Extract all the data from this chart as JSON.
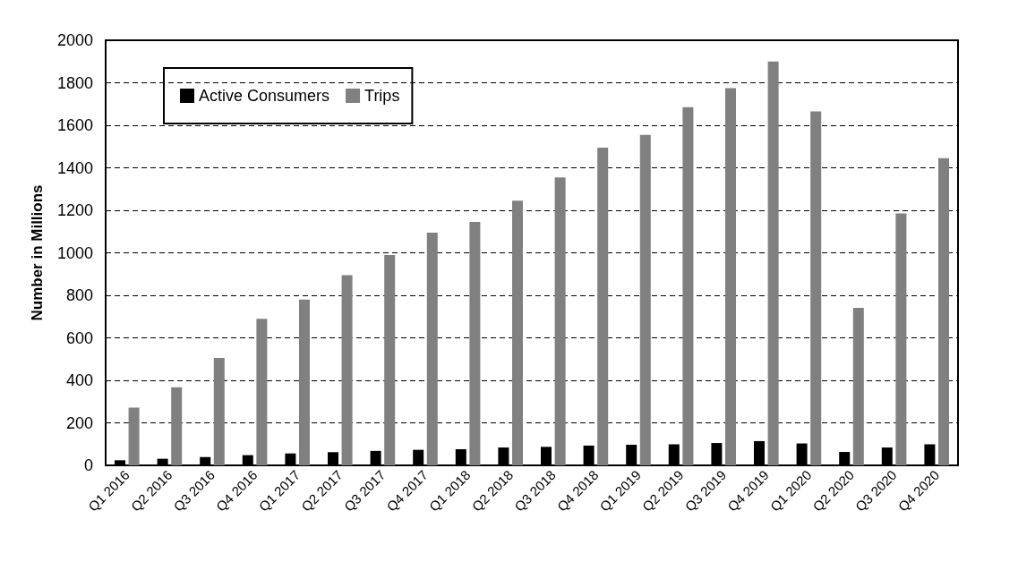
{
  "chart_data": {
    "type": "bar",
    "ylabel": "Number in Millions",
    "categories": [
      "Q1 2016",
      "Q2 2016",
      "Q3 2016",
      "Q4 2016",
      "Q1 2017",
      "Q2 2017",
      "Q3 2017",
      "Q4 2017",
      "Q1 2018",
      "Q2 2018",
      "Q3 2018",
      "Q4 2018",
      "Q1 2019",
      "Q2 2019",
      "Q3 2019",
      "Q4 2019",
      "Q1 2020",
      "Q2 2020",
      "Q3 2020",
      "Q4 2020"
    ],
    "series": [
      {
        "name": "Active Consumers",
        "color": "#000000",
        "values": [
          24,
          31,
          39,
          48,
          56,
          62,
          68,
          73,
          76,
          84,
          87,
          93,
          97,
          99,
          105,
          114,
          103,
          63,
          84,
          99
        ]
      },
      {
        "name": "Trips",
        "color": "#808080",
        "values": [
          272,
          367,
          505,
          690,
          780,
          895,
          990,
          1095,
          1145,
          1245,
          1355,
          1495,
          1555,
          1685,
          1775,
          1900,
          1665,
          741,
          1185,
          1445
        ]
      }
    ],
    "ylim": [
      0,
      2000
    ],
    "yticks": [
      0,
      200,
      400,
      600,
      800,
      1000,
      1200,
      1400,
      1600,
      1800,
      2000
    ],
    "grid": "y",
    "legend": "top left"
  }
}
